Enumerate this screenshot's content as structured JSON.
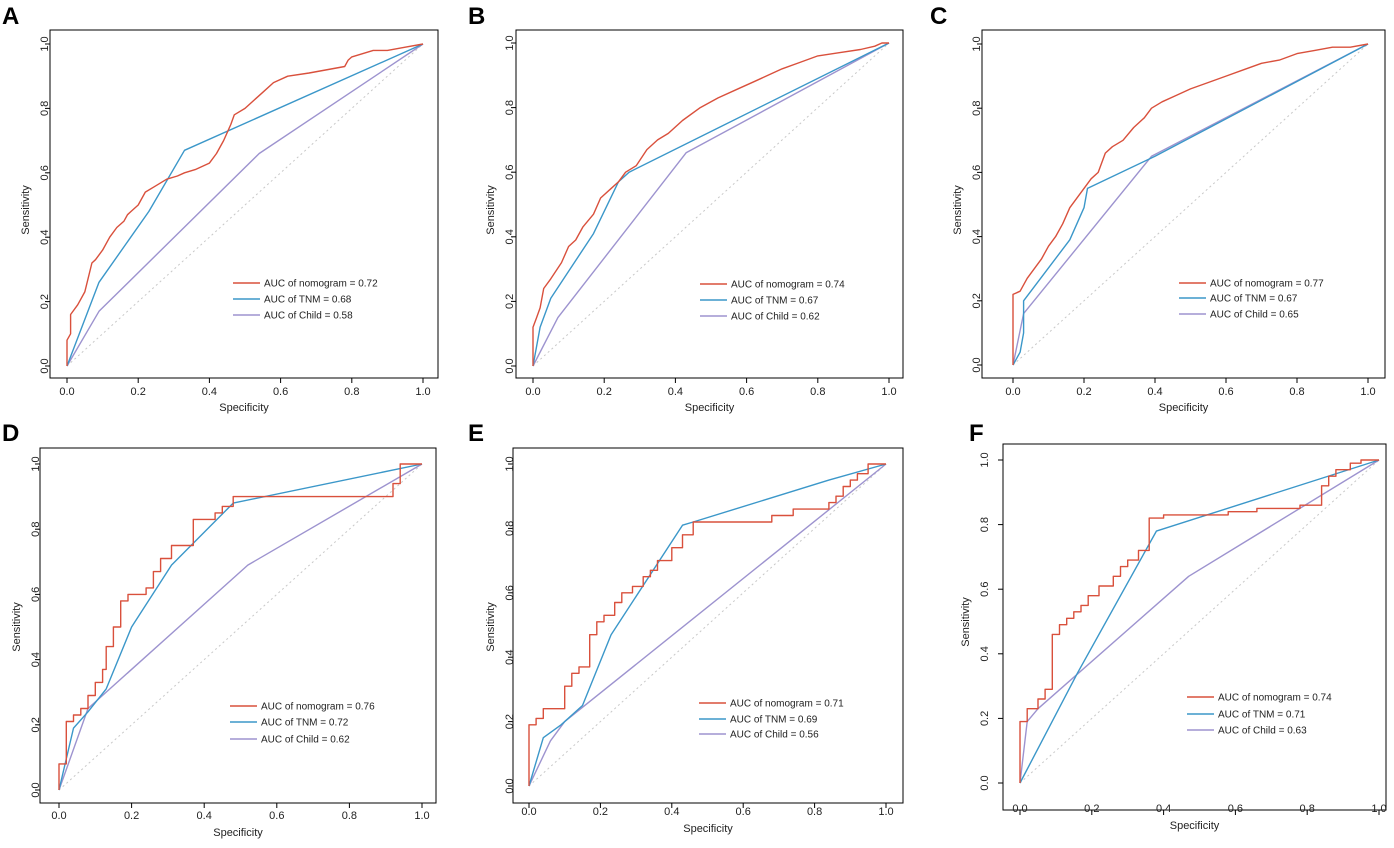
{
  "figure": {
    "colors": {
      "nomogram": "#d9503c",
      "tnm": "#3b97c9",
      "child": "#9d93cf",
      "diagonal": "#c8c8c8",
      "frame": "#000000"
    },
    "panels_order": [
      "A",
      "B",
      "C",
      "D",
      "E",
      "F"
    ]
  },
  "chart_data": [
    {
      "panel": "A",
      "type": "line",
      "xlabel": "Specificity",
      "ylabel": "Sensitivity",
      "xlim": [
        0,
        1
      ],
      "ylim": [
        0,
        1
      ],
      "xticks": [
        "0.0",
        "0.2",
        "0.4",
        "0.6",
        "0.8",
        "1.0"
      ],
      "yticks": [
        "0.0",
        "0.2",
        "0.4",
        "0.6",
        "0.8",
        "1.0"
      ],
      "legend": [
        "AUC of nomogram = 0.72",
        "AUC of TNM = 0.68",
        "AUC of Child = 0.58"
      ],
      "series": [
        {
          "name": "nomogram",
          "x": [
            0,
            0,
            0.01,
            0.01,
            0.03,
            0.05,
            0.07,
            0.08,
            0.1,
            0.12,
            0.14,
            0.16,
            0.17,
            0.18,
            0.2,
            0.22,
            0.25,
            0.28,
            0.31,
            0.33,
            0.36,
            0.38,
            0.4,
            0.42,
            0.44,
            0.46,
            0.47,
            0.5,
            0.53,
            0.55,
            0.58,
            0.62,
            0.68,
            0.78,
            0.79,
            0.8,
            0.83,
            0.86,
            0.9,
            0.95,
            1.0
          ],
          "y": [
            0,
            0.08,
            0.1,
            0.16,
            0.19,
            0.23,
            0.32,
            0.33,
            0.36,
            0.4,
            0.43,
            0.45,
            0.47,
            0.48,
            0.5,
            0.54,
            0.56,
            0.58,
            0.59,
            0.6,
            0.61,
            0.62,
            0.63,
            0.66,
            0.7,
            0.75,
            0.78,
            0.8,
            0.83,
            0.85,
            0.88,
            0.9,
            0.91,
            0.93,
            0.95,
            0.96,
            0.97,
            0.98,
            0.98,
            0.99,
            1.0
          ]
        },
        {
          "name": "TNM",
          "x": [
            0,
            0.09,
            0.23,
            0.33,
            1.0
          ],
          "y": [
            0,
            0.26,
            0.48,
            0.67,
            1.0
          ]
        },
        {
          "name": "Child",
          "x": [
            0,
            0.09,
            0.54,
            1.0
          ],
          "y": [
            0,
            0.17,
            0.66,
            1.0
          ]
        }
      ]
    },
    {
      "panel": "B",
      "type": "line",
      "xlabel": "Specificity",
      "ylabel": "Sensitivity",
      "xlim": [
        0,
        1
      ],
      "ylim": [
        0,
        1
      ],
      "xticks": [
        "0.0",
        "0.2",
        "0.4",
        "0.6",
        "0.8",
        "1.0"
      ],
      "yticks": [
        "0.0",
        "0.2",
        "0.4",
        "0.6",
        "0.8",
        "1.0"
      ],
      "legend": [
        "AUC of nomogram = 0.74",
        "AUC of TNM = 0.67",
        "AUC of Child = 0.62"
      ],
      "series": [
        {
          "name": "nomogram",
          "x": [
            0,
            0,
            0.01,
            0.02,
            0.03,
            0.05,
            0.08,
            0.1,
            0.12,
            0.14,
            0.17,
            0.19,
            0.22,
            0.24,
            0.26,
            0.29,
            0.32,
            0.35,
            0.38,
            0.42,
            0.47,
            0.52,
            0.58,
            0.62,
            0.66,
            0.7,
            0.75,
            0.8,
            0.86,
            0.92,
            0.96,
            0.98,
            1.0
          ],
          "y": [
            0,
            0.12,
            0.15,
            0.18,
            0.24,
            0.27,
            0.32,
            0.37,
            0.39,
            0.43,
            0.47,
            0.52,
            0.55,
            0.57,
            0.6,
            0.62,
            0.67,
            0.7,
            0.72,
            0.76,
            0.8,
            0.83,
            0.86,
            0.88,
            0.9,
            0.92,
            0.94,
            0.96,
            0.97,
            0.98,
            0.99,
            1.0,
            1.0
          ]
        },
        {
          "name": "TNM",
          "x": [
            0,
            0.02,
            0.05,
            0.17,
            0.24,
            0.27,
            1.0
          ],
          "y": [
            0,
            0.12,
            0.21,
            0.41,
            0.57,
            0.6,
            1.0
          ]
        },
        {
          "name": "Child",
          "x": [
            0,
            0.07,
            0.43,
            1.0
          ],
          "y": [
            0,
            0.15,
            0.66,
            1.0
          ]
        }
      ]
    },
    {
      "panel": "C",
      "type": "line",
      "xlabel": "Specificity",
      "ylabel": "Sensitivity",
      "xlim": [
        0,
        1
      ],
      "ylim": [
        0,
        1
      ],
      "xticks": [
        "0.0",
        "0.2",
        "0.4",
        "0.6",
        "0.8",
        "1.0"
      ],
      "yticks": [
        "0.0",
        "0.2",
        "0.4",
        "0.6",
        "0.8",
        "1.0"
      ],
      "legend": [
        "AUC of nomogram = 0.77",
        "AUC of TNM = 0.67",
        "AUC of Child = 0.65"
      ],
      "series": [
        {
          "name": "nomogram",
          "x": [
            0,
            0,
            0.02,
            0.04,
            0.06,
            0.08,
            0.1,
            0.12,
            0.14,
            0.16,
            0.18,
            0.2,
            0.22,
            0.24,
            0.26,
            0.28,
            0.31,
            0.34,
            0.37,
            0.39,
            0.42,
            0.46,
            0.5,
            0.55,
            0.6,
            0.65,
            0.7,
            0.75,
            0.8,
            0.85,
            0.9,
            0.95,
            1.0
          ],
          "y": [
            0,
            0.22,
            0.23,
            0.27,
            0.3,
            0.33,
            0.37,
            0.4,
            0.44,
            0.49,
            0.52,
            0.55,
            0.58,
            0.6,
            0.66,
            0.68,
            0.7,
            0.74,
            0.77,
            0.8,
            0.82,
            0.84,
            0.86,
            0.88,
            0.9,
            0.92,
            0.94,
            0.95,
            0.97,
            0.98,
            0.99,
            0.99,
            1.0
          ]
        },
        {
          "name": "TNM",
          "x": [
            0,
            0.02,
            0.03,
            0.03,
            0.16,
            0.2,
            0.21,
            0.4,
            1.0
          ],
          "y": [
            0,
            0.04,
            0.1,
            0.2,
            0.39,
            0.49,
            0.55,
            0.65,
            1.0
          ]
        },
        {
          "name": "Child",
          "x": [
            0,
            0.03,
            0.39,
            1.0
          ],
          "y": [
            0,
            0.16,
            0.65,
            1.0
          ]
        }
      ]
    },
    {
      "panel": "D",
      "type": "line",
      "xlabel": "Specificity",
      "ylabel": "Sensitivity",
      "xlim": [
        0,
        1
      ],
      "ylim": [
        0,
        1
      ],
      "xticks": [
        "0.0",
        "0.2",
        "0.4",
        "0.6",
        "0.8",
        "1.0"
      ],
      "yticks": [
        "0.0",
        "0.2",
        "0.4",
        "0.6",
        "0.8",
        "1.0"
      ],
      "legend": [
        "AUC of nomogram = 0.76",
        "AUC of TNM = 0.72",
        "AUC of Child = 0.62"
      ],
      "series": [
        {
          "name": "nomogram",
          "x": [
            0,
            0,
            0.02,
            0.02,
            0.04,
            0.04,
            0.06,
            0.06,
            0.08,
            0.08,
            0.1,
            0.1,
            0.12,
            0.12,
            0.13,
            0.13,
            0.15,
            0.15,
            0.17,
            0.17,
            0.19,
            0.19,
            0.22,
            0.22,
            0.24,
            0.24,
            0.26,
            0.26,
            0.28,
            0.28,
            0.31,
            0.31,
            0.35,
            0.35,
            0.37,
            0.37,
            0.4,
            0.4,
            0.43,
            0.43,
            0.45,
            0.45,
            0.48,
            0.48,
            0.6,
            0.92,
            0.92,
            0.94,
            0.94,
            1.0
          ],
          "y": [
            0,
            0.08,
            0.08,
            0.21,
            0.21,
            0.23,
            0.23,
            0.25,
            0.25,
            0.29,
            0.29,
            0.33,
            0.33,
            0.37,
            0.37,
            0.44,
            0.44,
            0.5,
            0.5,
            0.58,
            0.58,
            0.6,
            0.6,
            0.6,
            0.6,
            0.62,
            0.62,
            0.67,
            0.67,
            0.71,
            0.71,
            0.75,
            0.75,
            0.75,
            0.75,
            0.83,
            0.83,
            0.83,
            0.83,
            0.85,
            0.85,
            0.87,
            0.87,
            0.9,
            0.9,
            0.9,
            0.94,
            0.94,
            1.0,
            1.0
          ]
        },
        {
          "name": "TNM",
          "x": [
            0,
            0.04,
            0.08,
            0.13,
            0.2,
            0.31,
            0.48,
            1.0
          ],
          "y": [
            0,
            0.19,
            0.24,
            0.31,
            0.5,
            0.69,
            0.88,
            1.0
          ]
        },
        {
          "name": "Child",
          "x": [
            0,
            0.08,
            0.52,
            1.0
          ],
          "y": [
            0,
            0.25,
            0.69,
            1.0
          ]
        }
      ]
    },
    {
      "panel": "E",
      "type": "line",
      "xlabel": "Specificity",
      "ylabel": "Sensitivity",
      "xlim": [
        0,
        1
      ],
      "ylim": [
        0,
        1
      ],
      "xticks": [
        "0.0",
        "0.2",
        "0.4",
        "0.6",
        "0.8",
        "1.0"
      ],
      "yticks": [
        "0.0",
        "0.2",
        "0.4",
        "0.6",
        "0.8",
        "1.0"
      ],
      "legend": [
        "AUC of nomogram = 0.71",
        "AUC of TNM = 0.69",
        "AUC of Child = 0.56"
      ],
      "series": [
        {
          "name": "nomogram",
          "x": [
            0,
            0,
            0.02,
            0.02,
            0.04,
            0.04,
            0.07,
            0.07,
            0.1,
            0.1,
            0.12,
            0.12,
            0.14,
            0.14,
            0.17,
            0.17,
            0.19,
            0.19,
            0.21,
            0.21,
            0.24,
            0.24,
            0.26,
            0.26,
            0.29,
            0.29,
            0.32,
            0.32,
            0.34,
            0.34,
            0.36,
            0.36,
            0.4,
            0.4,
            0.43,
            0.43,
            0.46,
            0.46,
            0.64,
            0.64,
            0.68,
            0.68,
            0.74,
            0.74,
            0.84,
            0.84,
            0.86,
            0.86,
            0.88,
            0.88,
            0.9,
            0.9,
            0.92,
            0.92,
            0.95,
            0.95,
            1.0
          ],
          "y": [
            0,
            0.19,
            0.19,
            0.21,
            0.21,
            0.24,
            0.24,
            0.24,
            0.24,
            0.31,
            0.31,
            0.35,
            0.35,
            0.37,
            0.37,
            0.47,
            0.47,
            0.51,
            0.51,
            0.53,
            0.53,
            0.57,
            0.57,
            0.6,
            0.6,
            0.62,
            0.62,
            0.65,
            0.65,
            0.67,
            0.67,
            0.7,
            0.7,
            0.74,
            0.74,
            0.78,
            0.78,
            0.82,
            0.82,
            0.82,
            0.82,
            0.84,
            0.84,
            0.86,
            0.86,
            0.88,
            0.88,
            0.9,
            0.9,
            0.93,
            0.93,
            0.95,
            0.95,
            0.97,
            0.97,
            1.0,
            1.0
          ]
        },
        {
          "name": "TNM",
          "x": [
            0,
            0.04,
            0.09,
            0.15,
            0.23,
            0.43,
            0.46,
            0.84,
            1.0
          ],
          "y": [
            0,
            0.15,
            0.19,
            0.25,
            0.47,
            0.81,
            0.82,
            0.95,
            1.0
          ]
        },
        {
          "name": "Child",
          "x": [
            0,
            0.06,
            0.1,
            1.0
          ],
          "y": [
            0,
            0.14,
            0.2,
            1.0
          ]
        }
      ]
    },
    {
      "panel": "F",
      "type": "line",
      "xlabel": "Specificity",
      "ylabel": "Sensitivity",
      "xlim": [
        0,
        1
      ],
      "ylim": [
        0,
        1
      ],
      "xticks": [
        "0.0",
        "0.2",
        "0.4",
        "0.6",
        "0.8",
        "1.0"
      ],
      "yticks": [
        "0.0",
        "0.2",
        "0.4",
        "0.6",
        "0.8",
        "1.0"
      ],
      "legend": [
        "AUC of nomogram = 0.74",
        "AUC of TNM = 0.71",
        "AUC of Child = 0.63"
      ],
      "series": [
        {
          "name": "nomogram",
          "x": [
            0,
            0,
            0.02,
            0.02,
            0.05,
            0.05,
            0.07,
            0.07,
            0.09,
            0.09,
            0.11,
            0.11,
            0.13,
            0.13,
            0.15,
            0.15,
            0.17,
            0.17,
            0.19,
            0.19,
            0.22,
            0.22,
            0.26,
            0.26,
            0.28,
            0.28,
            0.3,
            0.3,
            0.33,
            0.33,
            0.36,
            0.36,
            0.4,
            0.4,
            0.58,
            0.58,
            0.66,
            0.66,
            0.78,
            0.78,
            0.84,
            0.84,
            0.86,
            0.86,
            0.88,
            0.88,
            0.92,
            0.92,
            0.95,
            0.95,
            1.0
          ],
          "y": [
            0,
            0.19,
            0.19,
            0.23,
            0.23,
            0.26,
            0.26,
            0.29,
            0.29,
            0.46,
            0.46,
            0.49,
            0.49,
            0.51,
            0.51,
            0.53,
            0.53,
            0.55,
            0.55,
            0.58,
            0.58,
            0.61,
            0.61,
            0.64,
            0.64,
            0.67,
            0.67,
            0.69,
            0.69,
            0.72,
            0.72,
            0.82,
            0.82,
            0.83,
            0.83,
            0.84,
            0.84,
            0.85,
            0.85,
            0.86,
            0.86,
            0.92,
            0.92,
            0.95,
            0.95,
            0.97,
            0.97,
            0.99,
            0.99,
            1.0,
            1.0
          ]
        },
        {
          "name": "TNM",
          "x": [
            0,
            0.16,
            0.38,
            1.0
          ],
          "y": [
            0,
            0.34,
            0.78,
            1.0
          ]
        },
        {
          "name": "Child",
          "x": [
            0,
            0.02,
            0.05,
            0.47,
            1.0
          ],
          "y": [
            0,
            0.19,
            0.23,
            0.64,
            1.0
          ]
        }
      ]
    }
  ]
}
